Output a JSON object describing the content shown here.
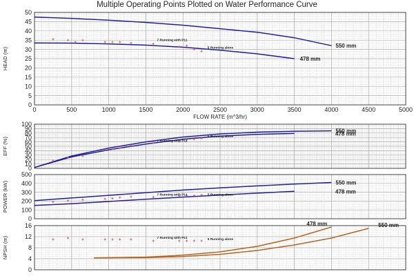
{
  "title": "Multiple Operating Points Plotted on Water Performance Curve",
  "colors": {
    "curve": "#1f1f9a",
    "npsh_curve": "#b5651d",
    "grid": "#a8a8a8",
    "marker": "#e05a6a"
  },
  "chart_data": [
    {
      "id": "head",
      "type": "line",
      "ylabel": "HEAD (m)",
      "xlabel": "FLOW RATE (m^3/hr)",
      "xlim": [
        0,
        5000
      ],
      "ylim": [
        0,
        50
      ],
      "xticks": [
        0,
        500,
        1000,
        1500,
        2000,
        2500,
        3000,
        3500,
        4000,
        4500,
        5000
      ],
      "yticks": [
        0,
        5,
        10,
        15,
        20,
        25,
        30,
        35,
        40,
        45,
        50
      ],
      "grid": true,
      "series": [
        {
          "name": "550 mm",
          "x": [
            0,
            500,
            1000,
            1500,
            2000,
            2500,
            3000,
            3500,
            4000
          ],
          "y": [
            47.5,
            46.8,
            45.8,
            44.6,
            43.1,
            41.2,
            39.3,
            36.3,
            32.0
          ]
        },
        {
          "name": "478 mm",
          "x": [
            0,
            500,
            1000,
            1500,
            2000,
            2500,
            3000,
            3500
          ],
          "y": [
            33.5,
            33.4,
            33.0,
            32.3,
            31.2,
            29.6,
            27.6,
            25.0
          ]
        }
      ],
      "points": [
        {
          "x": 250,
          "y": 35.5
        },
        {
          "x": 450,
          "y": 35
        },
        {
          "x": 550,
          "y": 34
        },
        {
          "x": 650,
          "y": 35
        },
        {
          "x": 950,
          "y": 34
        },
        {
          "x": 1050,
          "y": 34
        },
        {
          "x": 1150,
          "y": 34
        },
        {
          "x": 1300,
          "y": 33.5
        },
        {
          "x": 1600,
          "y": 33
        },
        {
          "x": 1950,
          "y": 31.5
        },
        {
          "x": 2050,
          "y": 32
        },
        {
          "x": 2150,
          "y": 30
        },
        {
          "x": 2250,
          "y": 29
        }
      ],
      "annotations": [
        {
          "text": "7 Running with P11",
          "x": 1650,
          "y": 34.5
        },
        {
          "text": "5 Running alone",
          "x": 2330,
          "y": 30.5
        }
      ]
    },
    {
      "id": "eff",
      "type": "line",
      "ylabel": "EFF (%)",
      "xlim": [
        0,
        5000
      ],
      "ylim": [
        0,
        100
      ],
      "yticks": [
        0,
        10,
        20,
        30,
        40,
        50,
        60,
        70,
        80,
        90,
        100
      ],
      "grid": true,
      "series": [
        {
          "name": "550 mm",
          "x": [
            0,
            500,
            1000,
            1500,
            2000,
            2500,
            3000,
            3500,
            4000
          ],
          "y": [
            2,
            28,
            46,
            60,
            71,
            78,
            82,
            84,
            85
          ]
        },
        {
          "name": "478 mm",
          "x": [
            0,
            500,
            1000,
            1500,
            2000,
            2500,
            3000,
            3500
          ],
          "y": [
            2,
            26,
            42,
            55,
            66,
            73,
            77,
            79
          ]
        }
      ],
      "points": [
        {
          "x": 250,
          "y": 17
        },
        {
          "x": 450,
          "y": 24
        },
        {
          "x": 650,
          "y": 28
        },
        {
          "x": 950,
          "y": 42
        },
        {
          "x": 1050,
          "y": 44
        },
        {
          "x": 1150,
          "y": 46
        },
        {
          "x": 1300,
          "y": 52
        },
        {
          "x": 1600,
          "y": 58
        },
        {
          "x": 1950,
          "y": 61
        },
        {
          "x": 2050,
          "y": 64
        },
        {
          "x": 2150,
          "y": 66
        },
        {
          "x": 2250,
          "y": 68
        }
      ],
      "annotations": [
        {
          "text": "7 Running with P11",
          "x": 1650,
          "y": 60
        },
        {
          "text": "5 Running alone",
          "x": 2330,
          "y": 70
        }
      ]
    },
    {
      "id": "power",
      "type": "line",
      "ylabel": "POWER (kW)",
      "xlim": [
        0,
        5000
      ],
      "ylim": [
        0,
        500
      ],
      "yticks": [
        0,
        100,
        200,
        300,
        400,
        500
      ],
      "grid": true,
      "series": [
        {
          "name": "550 mm",
          "x": [
            0,
            500,
            1000,
            1500,
            2000,
            2500,
            3000,
            3500,
            4000
          ],
          "y": [
            205,
            235,
            265,
            295,
            325,
            350,
            372,
            392,
            410
          ]
        },
        {
          "name": "478 mm",
          "x": [
            0,
            500,
            1000,
            1500,
            2000,
            2500,
            3000,
            3500
          ],
          "y": [
            150,
            170,
            195,
            220,
            245,
            268,
            290,
            310
          ]
        }
      ],
      "points": [
        {
          "x": 250,
          "y": 190
        },
        {
          "x": 450,
          "y": 205
        },
        {
          "x": 650,
          "y": 215
        },
        {
          "x": 950,
          "y": 225
        },
        {
          "x": 1050,
          "y": 230
        },
        {
          "x": 1150,
          "y": 240
        },
        {
          "x": 1300,
          "y": 250
        },
        {
          "x": 1600,
          "y": 245
        },
        {
          "x": 1950,
          "y": 260
        },
        {
          "x": 2050,
          "y": 265
        },
        {
          "x": 2150,
          "y": 262
        },
        {
          "x": 2250,
          "y": 268
        }
      ],
      "annotations": [
        {
          "text": "7 Running with P11",
          "x": 1650,
          "y": 262
        },
        {
          "text": "5 Running alone",
          "x": 2330,
          "y": 262
        }
      ]
    },
    {
      "id": "npsh",
      "type": "line",
      "ylabel": "NPSH (m)",
      "xlim": [
        0,
        5000
      ],
      "ylim": [
        0,
        16
      ],
      "yticks": [
        0,
        4,
        8,
        12,
        16
      ],
      "grid": true,
      "series": [
        {
          "name": "478 mm",
          "x": [
            800,
            1500,
            2000,
            2500,
            3000,
            3500,
            4000
          ],
          "y": [
            4.3,
            4.6,
            5.3,
            6.5,
            8.5,
            11.5,
            15.5
          ]
        },
        {
          "name": "550 mm",
          "x": [
            800,
            1500,
            2000,
            2500,
            3000,
            3500,
            4000,
            4500
          ],
          "y": [
            4.3,
            4.4,
            4.8,
            5.6,
            7.0,
            9.0,
            11.5,
            15.0
          ]
        }
      ],
      "points": [
        {
          "x": 250,
          "y": 11
        },
        {
          "x": 450,
          "y": 11.5
        },
        {
          "x": 650,
          "y": 11
        },
        {
          "x": 950,
          "y": 11
        },
        {
          "x": 1050,
          "y": 11
        },
        {
          "x": 1150,
          "y": 11
        },
        {
          "x": 1300,
          "y": 11
        },
        {
          "x": 1600,
          "y": 10.5
        },
        {
          "x": 1950,
          "y": 10.5
        },
        {
          "x": 2050,
          "y": 10.5
        },
        {
          "x": 2150,
          "y": 10.5
        },
        {
          "x": 2250,
          "y": 10.5
        }
      ],
      "annotations": [
        {
          "text": "7 Running with P11",
          "x": 1650,
          "y": 11.3
        },
        {
          "text": "5 Running alone",
          "x": 2330,
          "y": 10.8
        }
      ]
    }
  ]
}
